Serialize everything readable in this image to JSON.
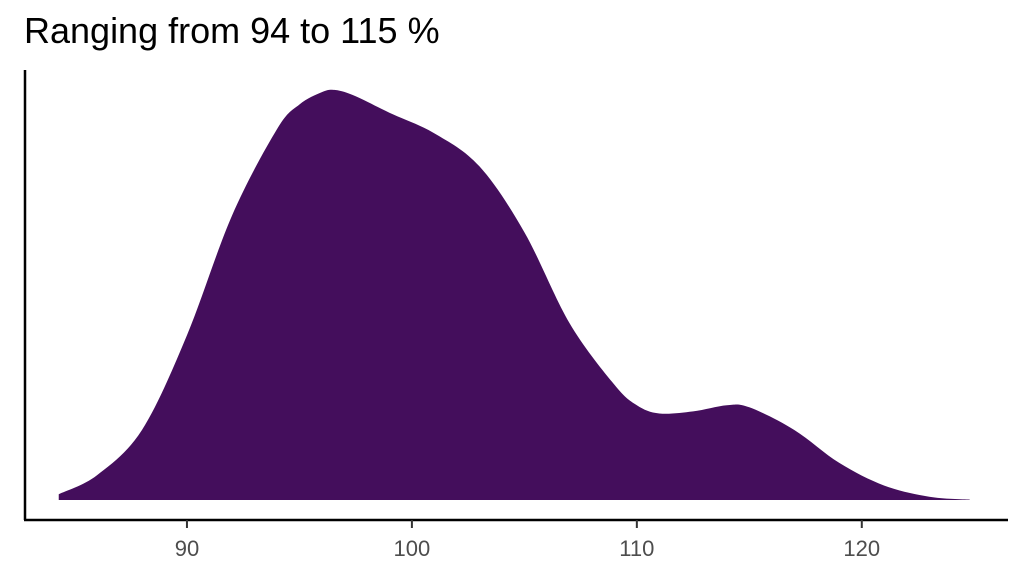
{
  "chart_data": {
    "type": "area",
    "title": "Ranging from 94 to 115 %",
    "xlabel": "",
    "ylabel": "",
    "xlim": [
      82.8,
      126.5
    ],
    "ylim": [
      0,
      1.0
    ],
    "xticks": [
      90,
      100,
      110,
      120
    ],
    "yticks": [],
    "grid": false,
    "legend": "none",
    "fill_color": "#440E5C",
    "series": [
      {
        "x": [
          84.3,
          86,
          88,
          90,
          92,
          94,
          95,
          96,
          96.6,
          97.5,
          99,
          101,
          103,
          105,
          107,
          109,
          110,
          111,
          112.5,
          114,
          115,
          117,
          119,
          121,
          123,
          124.8
        ],
        "y": [
          0.014,
          0.06,
          0.17,
          0.4,
          0.69,
          0.9,
          0.96,
          0.99,
          0.995,
          0.98,
          0.94,
          0.89,
          0.81,
          0.65,
          0.43,
          0.28,
          0.23,
          0.21,
          0.215,
          0.23,
          0.225,
          0.17,
          0.09,
          0.035,
          0.008,
          0.001
        ]
      }
    ]
  }
}
